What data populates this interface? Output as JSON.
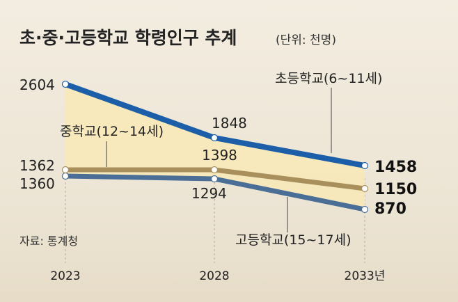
{
  "chart_data": {
    "type": "line",
    "title": "초·중·고등학교 학령인구 추계",
    "unit": "(단위: 천명)",
    "source": "자료: 통계청",
    "x": [
      "2023",
      "2028",
      "2033년"
    ],
    "ylim": [
      0,
      2700
    ],
    "grid": false,
    "series": [
      {
        "name": "초등학교(6~11세)",
        "values": [
          2604,
          1848,
          1458
        ],
        "color": "#1c5fa8",
        "labels": [
          "2604",
          "1848",
          "1458"
        ]
      },
      {
        "name": "중학교(12~14세)",
        "values": [
          1362,
          1398,
          1150
        ],
        "color": "#a88f5c",
        "labels": [
          "1362",
          "1398",
          "1150"
        ]
      },
      {
        "name": "고등학교(15~17세)",
        "values": [
          1360,
          1294,
          870
        ],
        "color": "#4a6e96",
        "labels": [
          "1360",
          "1294",
          "870"
        ]
      }
    ]
  }
}
